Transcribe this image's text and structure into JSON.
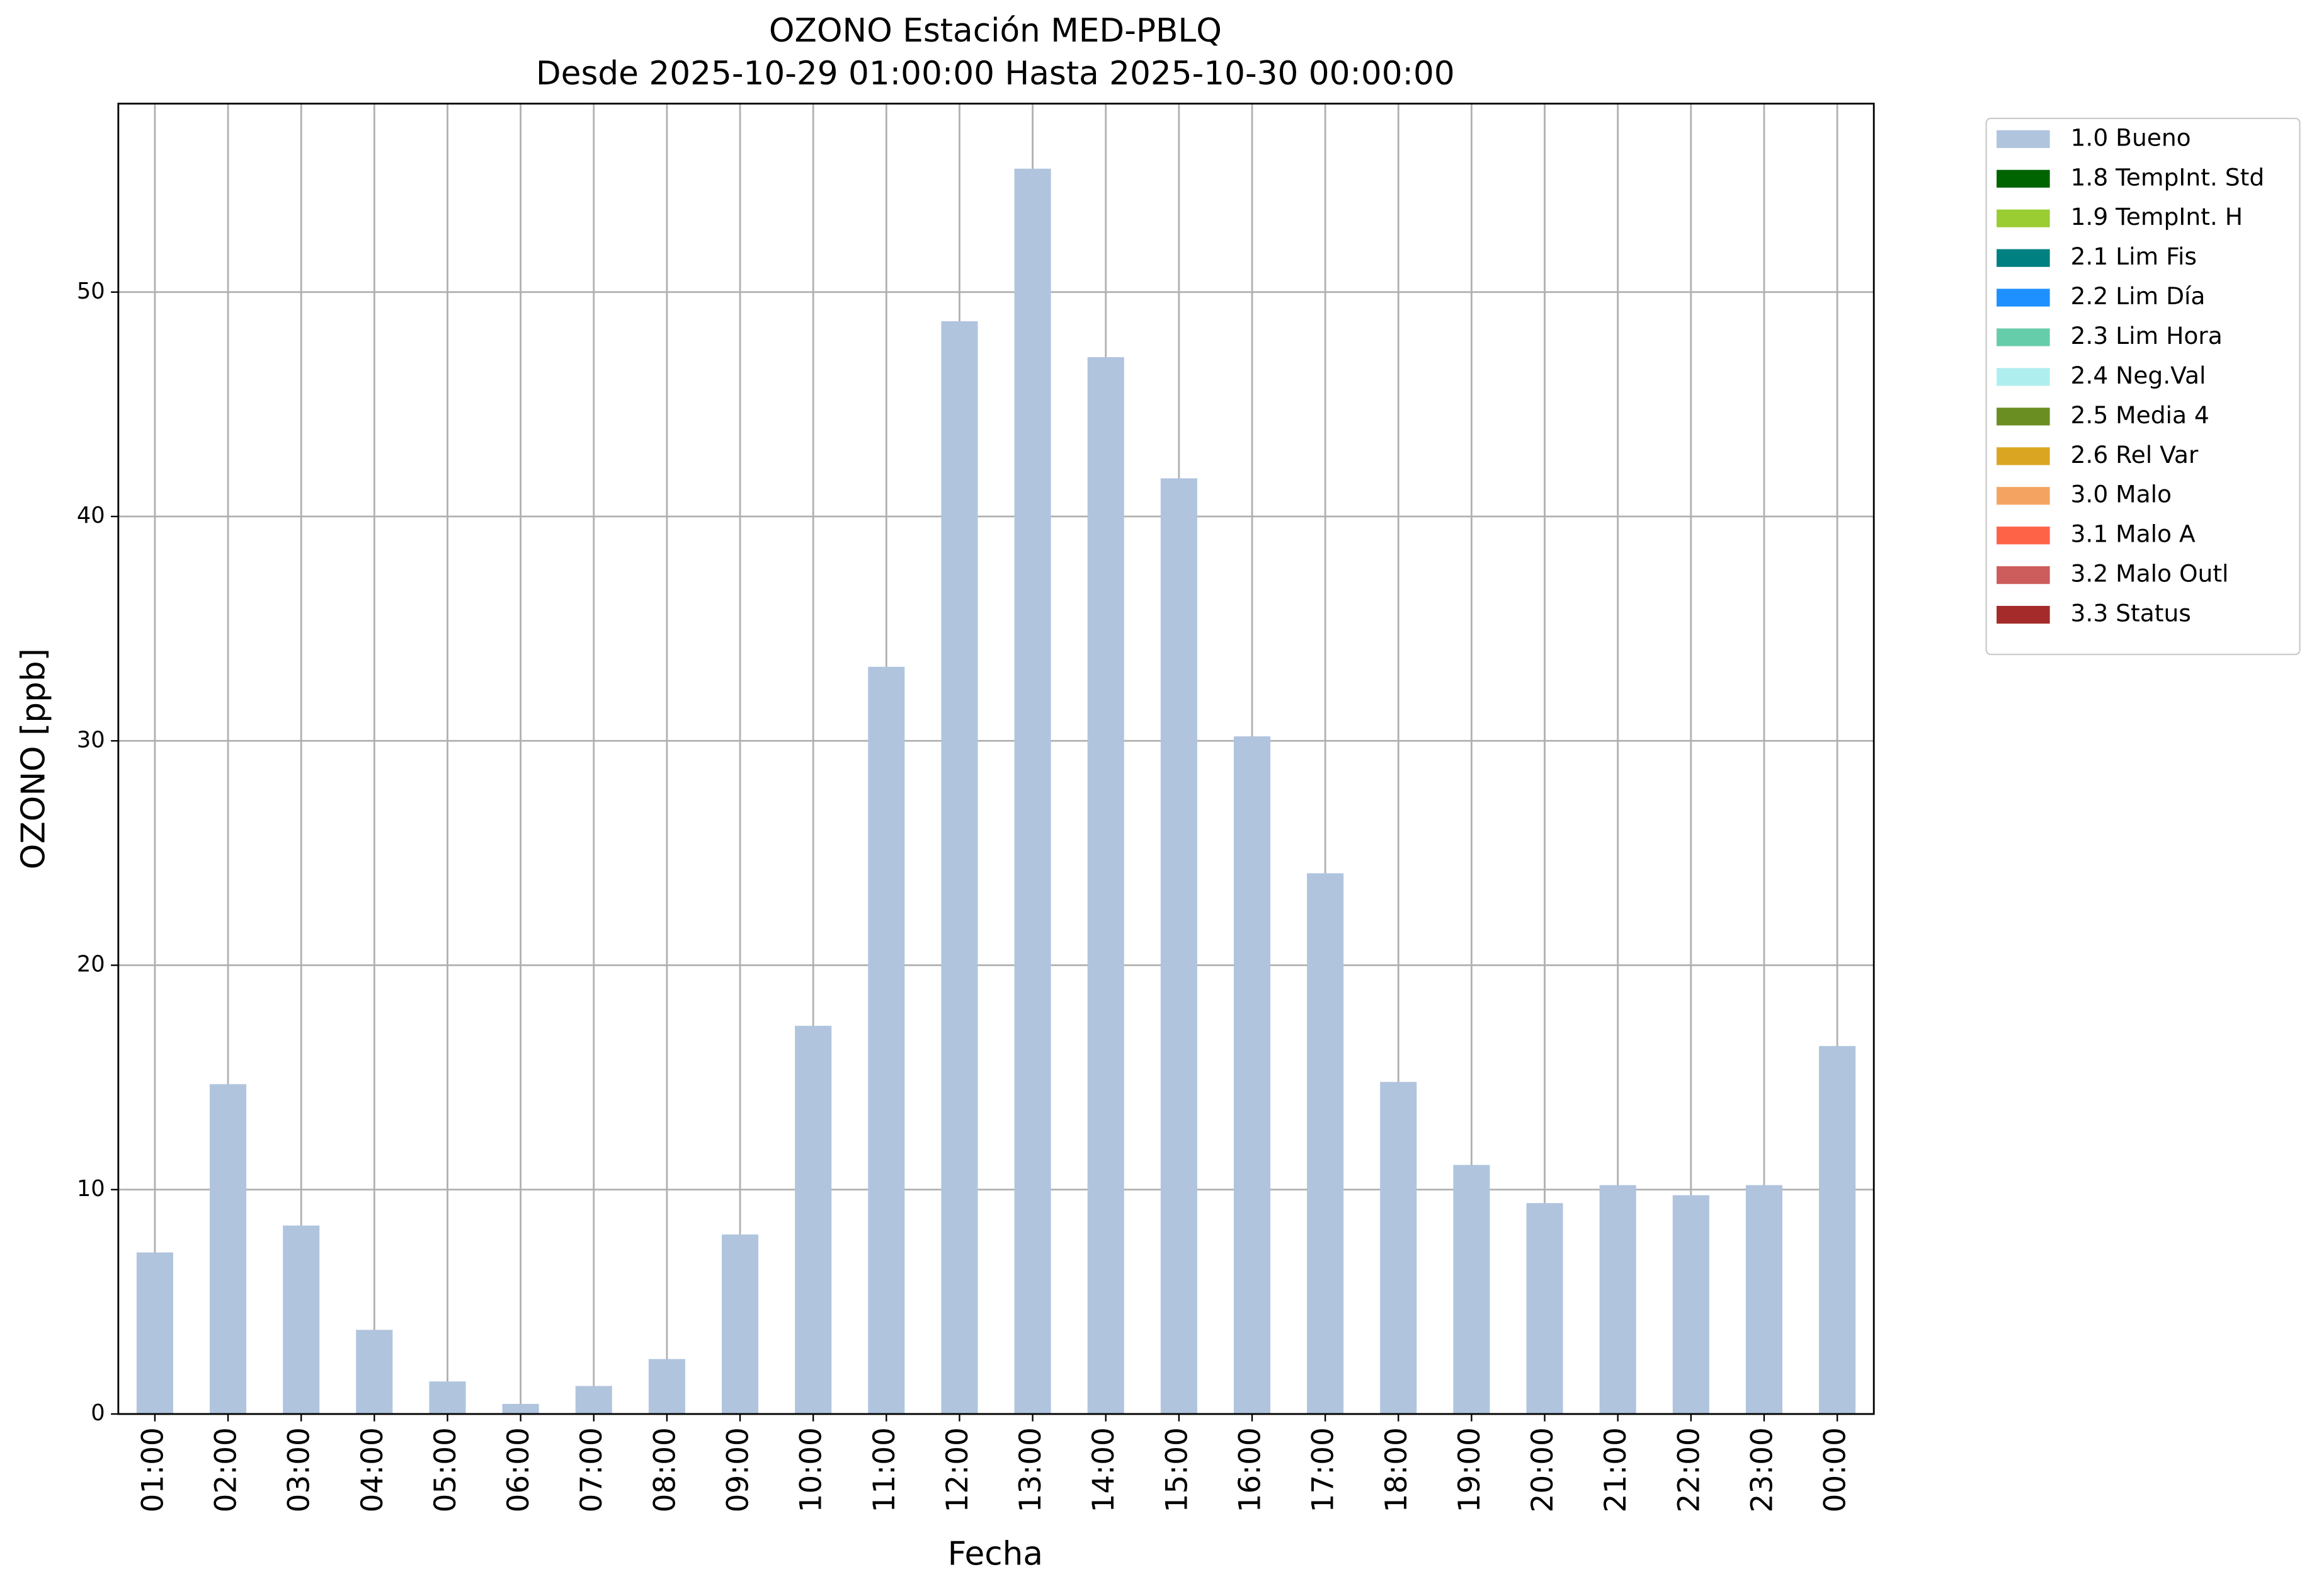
{
  "chart_data": {
    "type": "bar",
    "title": "OZONO Estación MED-PBLQ",
    "subtitle": "Desde 2025-10-29 01:00:00 Hasta 2025-10-30 00:00:00",
    "x_label": "Fecha",
    "y_label": "OZONO [ppb]",
    "categories": [
      "01:00",
      "02:00",
      "03:00",
      "04:00",
      "05:00",
      "06:00",
      "07:00",
      "08:00",
      "09:00",
      "10:00",
      "11:00",
      "12:00",
      "13:00",
      "14:00",
      "15:00",
      "16:00",
      "17:00",
      "18:00",
      "19:00",
      "20:00",
      "21:00",
      "22:00",
      "23:00",
      "00:00"
    ],
    "series": [
      {
        "name": "1.0 Bueno",
        "color": "#b0c4de",
        "values": [
          7.2,
          14.7,
          8.4,
          3.75,
          1.45,
          0.45,
          1.25,
          2.45,
          8.0,
          17.3,
          33.3,
          48.7,
          55.5,
          47.1,
          41.7,
          30.2,
          24.1,
          14.8,
          11.1,
          9.4,
          10.2,
          9.75,
          10.2,
          16.4
        ]
      },
      {
        "name": "1.8 TempInt. Std",
        "color": "#006400",
        "values": [
          null,
          null,
          null,
          null,
          null,
          null,
          null,
          null,
          null,
          null,
          null,
          null,
          null,
          null,
          null,
          null,
          null,
          null,
          null,
          null,
          null,
          null,
          null,
          null
        ]
      },
      {
        "name": "1.9 TempInt. H",
        "color": "#9acd32",
        "values": [
          null,
          null,
          null,
          null,
          null,
          null,
          null,
          null,
          null,
          null,
          null,
          null,
          null,
          null,
          null,
          null,
          null,
          null,
          null,
          null,
          null,
          null,
          null,
          null
        ]
      },
      {
        "name": "2.1 Lim Fis",
        "color": "#008080",
        "values": [
          null,
          null,
          null,
          null,
          null,
          null,
          null,
          null,
          null,
          null,
          null,
          null,
          null,
          null,
          null,
          null,
          null,
          null,
          null,
          null,
          null,
          null,
          null,
          null
        ]
      },
      {
        "name": "2.2 Lim Día",
        "color": "#1e90ff",
        "values": [
          null,
          null,
          null,
          null,
          null,
          null,
          null,
          null,
          null,
          null,
          null,
          null,
          null,
          null,
          null,
          null,
          null,
          null,
          null,
          null,
          null,
          null,
          null,
          null
        ]
      },
      {
        "name": "2.3 Lim Hora",
        "color": "#66cdaa",
        "values": [
          null,
          null,
          null,
          null,
          null,
          null,
          null,
          null,
          null,
          null,
          null,
          null,
          null,
          null,
          null,
          null,
          null,
          null,
          null,
          null,
          null,
          null,
          null,
          null
        ]
      },
      {
        "name": "2.4 Neg.Val",
        "color": "#afeeee",
        "values": [
          null,
          null,
          null,
          null,
          null,
          null,
          null,
          null,
          null,
          null,
          null,
          null,
          null,
          null,
          null,
          null,
          null,
          null,
          null,
          null,
          null,
          null,
          null,
          null
        ]
      },
      {
        "name": "2.5 Media 4",
        "color": "#6b8e23",
        "values": [
          null,
          null,
          null,
          null,
          null,
          null,
          null,
          null,
          null,
          null,
          null,
          null,
          null,
          null,
          null,
          null,
          null,
          null,
          null,
          null,
          null,
          null,
          null,
          null
        ]
      },
      {
        "name": "2.6 Rel Var",
        "color": "#daa520",
        "values": [
          null,
          null,
          null,
          null,
          null,
          null,
          null,
          null,
          null,
          null,
          null,
          null,
          null,
          null,
          null,
          null,
          null,
          null,
          null,
          null,
          null,
          null,
          null,
          null
        ]
      },
      {
        "name": "3.0 Malo",
        "color": "#f4a460",
        "values": [
          null,
          null,
          null,
          null,
          null,
          null,
          null,
          null,
          null,
          null,
          null,
          null,
          null,
          null,
          null,
          null,
          null,
          null,
          null,
          null,
          null,
          null,
          null,
          null
        ]
      },
      {
        "name": "3.1 Malo A",
        "color": "#ff6347",
        "values": [
          null,
          null,
          null,
          null,
          null,
          null,
          null,
          null,
          null,
          null,
          null,
          null,
          null,
          null,
          null,
          null,
          null,
          null,
          null,
          null,
          null,
          null,
          null,
          null
        ]
      },
      {
        "name": "3.2 Malo Outl",
        "color": "#cd5c5c",
        "values": [
          null,
          null,
          null,
          null,
          null,
          null,
          null,
          null,
          null,
          null,
          null,
          null,
          null,
          null,
          null,
          null,
          null,
          null,
          null,
          null,
          null,
          null,
          null,
          null
        ]
      },
      {
        "name": "3.3 Status",
        "color": "#a52a2a",
        "values": [
          null,
          null,
          null,
          null,
          null,
          null,
          null,
          null,
          null,
          null,
          null,
          null,
          null,
          null,
          null,
          null,
          null,
          null,
          null,
          null,
          null,
          null,
          null,
          null
        ]
      }
    ],
    "ylim": [
      0,
      58.4
    ],
    "yticks": [
      0,
      10,
      20,
      30,
      40,
      50
    ],
    "grid": true,
    "legend": "outside-upper-right"
  }
}
